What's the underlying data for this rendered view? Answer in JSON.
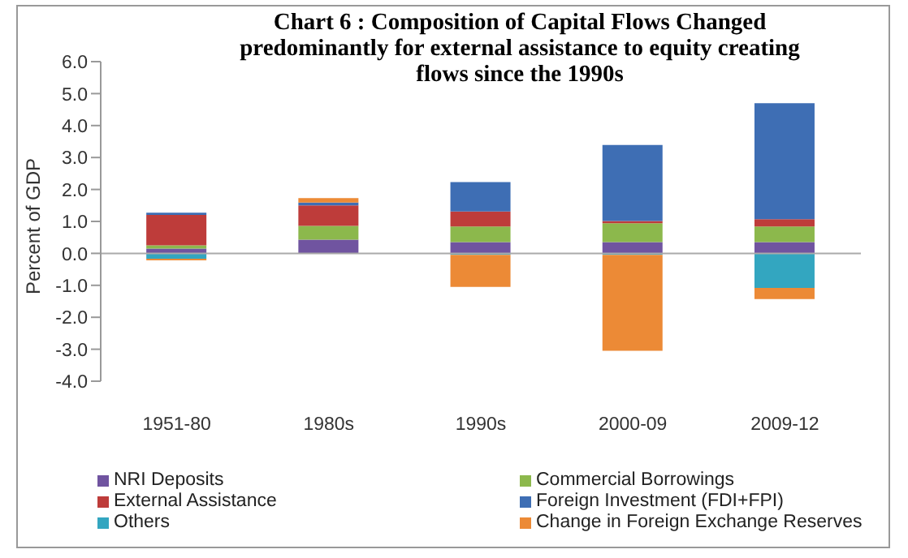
{
  "chart_data": {
    "type": "bar",
    "title": "Chart 6 : Composition of Capital Flows Changed predominantly for external assistance to equity creating flows since the 1990s",
    "ylabel": "Percent of GDP",
    "categories": [
      "1951-80",
      "1980s",
      "1990s",
      "2000-09",
      "2009-12"
    ],
    "stacked": true,
    "series": [
      {
        "name": "NRI Deposits",
        "color": "#7054a0",
        "values": [
          0.15,
          0.43,
          0.35,
          0.35,
          0.35
        ]
      },
      {
        "name": "Commercial Borrowings",
        "color": "#8cb84c",
        "values": [
          0.1,
          0.43,
          0.49,
          0.59,
          0.49
        ]
      },
      {
        "name": "External Assistance",
        "color": "#be3c3a",
        "values": [
          0.95,
          0.64,
          0.47,
          0.07,
          0.23
        ]
      },
      {
        "name": "Foreign Investment (FDI+FPI)",
        "color": "#3e6eb4",
        "values": [
          0.07,
          0.09,
          0.92,
          2.38,
          3.63
        ]
      },
      {
        "name": "Others",
        "color": "#33a6c0",
        "values": [
          -0.17,
          0,
          -0.05,
          -0.05,
          -1.08
        ]
      },
      {
        "name": "Change in Foreign Exchange Reserves",
        "color": "#ec8a36",
        "values": [
          -0.05,
          0.14,
          -1.0,
          -3.0,
          -0.35
        ]
      }
    ],
    "ylim": [
      -4,
      6
    ],
    "yticks": [
      {
        "value": -4,
        "label": "-4.0"
      },
      {
        "value": -3,
        "label": "-3.0"
      },
      {
        "value": -2,
        "label": "-2.0"
      },
      {
        "value": -1,
        "label": "-1.0"
      },
      {
        "value": 0,
        "label": "0.0"
      },
      {
        "value": 1,
        "label": "1.0"
      },
      {
        "value": 2,
        "label": "2.0"
      },
      {
        "value": 3,
        "label": "3.0"
      },
      {
        "value": 4,
        "label": "4.0"
      },
      {
        "value": 5,
        "label": "5.0"
      },
      {
        "value": 6,
        "label": "6.0"
      }
    ],
    "legend": "bottom"
  }
}
